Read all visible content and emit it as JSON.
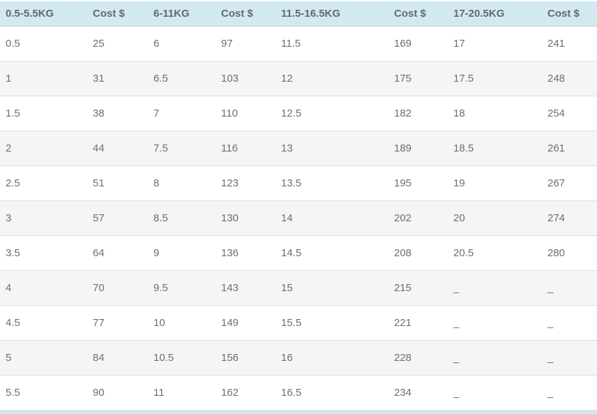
{
  "colors": {
    "header_bg": "#d2e9f2",
    "header_text": "#5d6c74",
    "cell_text": "#6e6e6e",
    "alt_row_bg": "#f5f5f5",
    "row_bg": "#ffffff",
    "divider": "#dedede",
    "bottom_bar": "#cfe8f2"
  },
  "empty_cell_marker": "_",
  "chart_data": {
    "type": "table",
    "columns": [
      "0.5-5.5KG",
      "Cost $",
      "6-11KG",
      "Cost $",
      "11.5-16.5KG",
      "Cost $",
      "17-20.5KG",
      "Cost $"
    ],
    "rows": [
      [
        "0.5",
        "25",
        "6",
        "97",
        "11.5",
        "169",
        "17",
        "241"
      ],
      [
        "1",
        "31",
        "6.5",
        "103",
        "12",
        "175",
        "17.5",
        "248"
      ],
      [
        "1.5",
        "38",
        "7",
        "110",
        "12.5",
        "182",
        "18",
        "254"
      ],
      [
        "2",
        "44",
        "7.5",
        "116",
        "13",
        "189",
        "18.5",
        "261"
      ],
      [
        "2.5",
        "51",
        "8",
        "123",
        "13.5",
        "195",
        "19",
        "267"
      ],
      [
        "3",
        "57",
        "8.5",
        "130",
        "14",
        "202",
        "20",
        "274"
      ],
      [
        "3.5",
        "64",
        "9",
        "136",
        "14.5",
        "208",
        "20.5",
        "280"
      ],
      [
        "4",
        "70",
        "9.5",
        "143",
        "15",
        "215",
        "_",
        "_"
      ],
      [
        "4.5",
        "77",
        "10",
        "149",
        "15.5",
        "221",
        "_",
        "_"
      ],
      [
        "5",
        "84",
        "10.5",
        "156",
        "16",
        "228",
        "_",
        "_"
      ],
      [
        "5.5",
        "90",
        "11",
        "162",
        "16.5",
        "234",
        "_",
        "_"
      ]
    ],
    "title": "",
    "layout_hints": {
      "alternating_rows": "whole-kg rows shaded light gray",
      "alignment": "left",
      "grid": "horizontal dividers only"
    }
  }
}
